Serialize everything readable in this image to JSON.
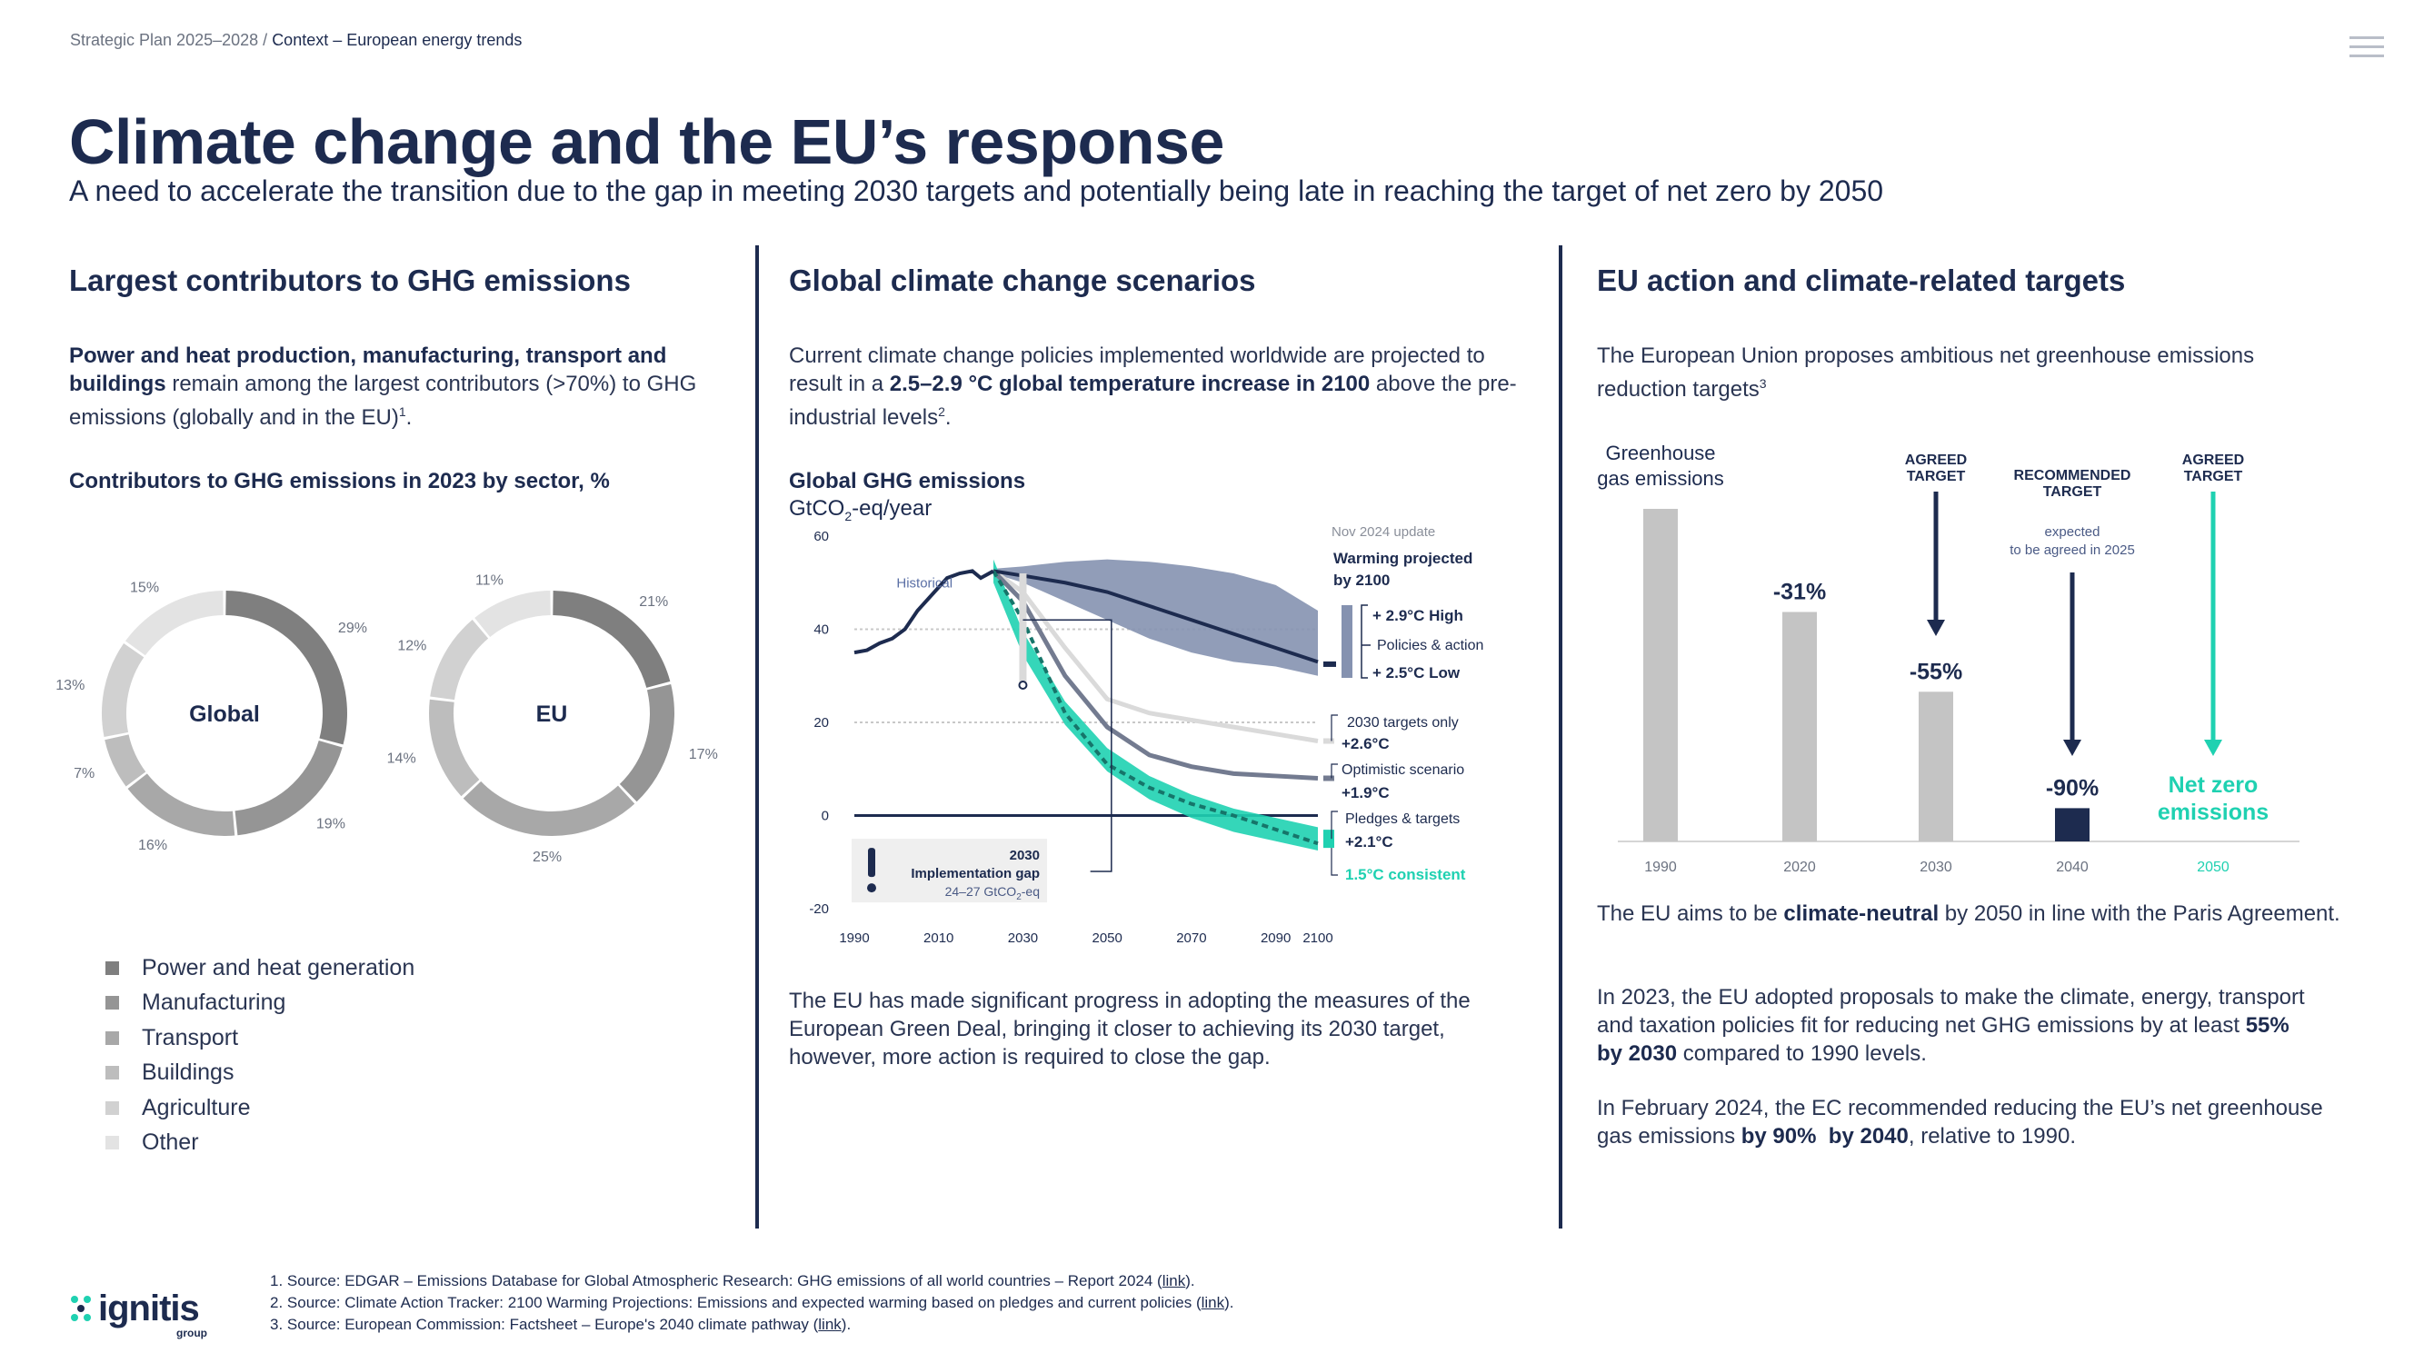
{
  "breadcrumb": {
    "root": "Strategic Plan 2025–2028 /",
    "current": "Context – European energy trends"
  },
  "title": "Climate change and the EU’s response",
  "subtitle": "A need to accelerate the transition due to the gap in meeting 2030 targets and potentially being late in reaching the target of net zero by 2050",
  "left": {
    "heading": "Largest contributors to GHG emissions",
    "p1_bold": "Power and heat production, manufacturing, transport and buildings",
    "p1_rest": " remain among the largest contributors (>70%) to GHG emissions (globally and in the EU)",
    "p1_sup": "1",
    "chart_title": "Contributors to GHG emissions in 2023 by sector, %",
    "legend": [
      {
        "label": "Power and heat generation",
        "color": "#7f7f7f"
      },
      {
        "label": "Manufacturing",
        "color": "#959595"
      },
      {
        "label": "Transport",
        "color": "#a8a8a8"
      },
      {
        "label": "Buildings",
        "color": "#bdbdbd"
      },
      {
        "label": "Agriculture",
        "color": "#d1d1d1"
      },
      {
        "label": "Other",
        "color": "#e3e3e3"
      }
    ]
  },
  "middle": {
    "heading": "Global climate change scenarios",
    "p1_a": "Current climate change policies implemented worldwide are projected to result in a ",
    "p1_bold": "2.5–2.9 °C global temperature increase in 2100",
    "p1_b": " above the pre-industrial levels",
    "p1_sup": "2",
    "chart_title": "Global GHG emissions",
    "chart_unit_pre": "GtCO",
    "chart_unit_sub": "2",
    "chart_unit_post": "-eq/year",
    "p2": "The EU has made significant progress in adopting the measures of the European Green Deal, bringing it closer to achieving its 2030 target, however, more action is required to close the gap."
  },
  "right": {
    "heading": "EU action and climate-related targets",
    "p1": "The European Union proposes ambitious net greenhouse emissions reduction targets",
    "p1_sup": "3",
    "p2_a": "The EU aims to be ",
    "p2_bold": "climate-neutral",
    "p2_b": " by 2050 in line with the Paris Agreement.",
    "p3_a": "In 2023, the EU adopted proposals to make the climate, energy, transport and taxation policies fit for reducing net GHG emissions by at least ",
    "p3_bold1": "55%",
    "p3_bold2": "by 2030",
    "p3_b": " compared to 1990 levels.",
    "p4_a": "In February 2024, the EC recommended reducing the EU’s net greenhouse gas emissions ",
    "p4_bold1": "by 90%",
    "p4_bold2": "by 2040",
    "p4_b": ", relative to 1990."
  },
  "footnotes": [
    {
      "num": "1.",
      "text": "Source: EDGAR – Emissions Database for Global Atmospheric Research: GHG emissions of all world countries – Report 2024 (",
      "link": "link",
      "end": ")."
    },
    {
      "num": "2.",
      "text": "Source: Climate Action Tracker: 2100 Warming Projections: Emissions and expected warming based on pledges and current policies (",
      "link": "link",
      "end": ")."
    },
    {
      "num": "3.",
      "text": "Source: European Commission: Factsheet – Europe's 2040 climate pathway (",
      "link": "link",
      "end": ")."
    }
  ],
  "logo": {
    "name": "ignitis",
    "sub": "group"
  },
  "colors": {
    "navy": "#1d2b4f",
    "teal": "#1fd1b1",
    "grey_bar": "#c4c4c4"
  },
  "chart_data": [
    {
      "type": "pie",
      "variant": "donut",
      "center_label": "Global",
      "categories": [
        "Power and heat generation",
        "Manufacturing",
        "Transport",
        "Buildings",
        "Agriculture",
        "Other"
      ],
      "values": [
        29,
        19,
        16,
        7,
        13,
        15
      ],
      "value_labels": [
        "29%",
        "19%",
        "16%",
        "7%",
        "13%",
        "15%"
      ]
    },
    {
      "type": "pie",
      "variant": "donut",
      "center_label": "EU",
      "categories": [
        "Power and heat generation",
        "Manufacturing",
        "Transport",
        "Buildings",
        "Agriculture",
        "Other"
      ],
      "values": [
        21,
        17,
        25,
        14,
        12,
        11
      ],
      "value_labels": [
        "21%",
        "17%",
        "25%",
        "14%",
        "12%",
        "11%"
      ]
    },
    {
      "type": "line",
      "title": "Global GHG emissions",
      "ylabel": "GtCO2-eq/year",
      "ylim": [
        -20,
        60
      ],
      "yticks": [
        -20,
        0,
        20,
        40,
        60
      ],
      "xlim": [
        1990,
        2100
      ],
      "xticks": [
        1990,
        2010,
        2030,
        2050,
        2070,
        2090,
        2100
      ],
      "update_note": "Nov 2024 update",
      "warming_header": "Warming projected by 2100",
      "historical_label": "Historical",
      "historical": {
        "x": [
          1990,
          1993,
          1996,
          1999,
          2002,
          2005,
          2008,
          2010,
          2012,
          2015,
          2018,
          2020,
          2023
        ],
        "y": [
          35,
          35.5,
          37,
          38,
          40,
          44,
          47,
          49,
          51,
          52,
          52.5,
          51,
          52.5
        ]
      },
      "policies_band": {
        "x": [
          2023,
          2030,
          2040,
          2050,
          2060,
          2070,
          2080,
          2090,
          2100
        ],
        "high": [
          53,
          53.5,
          54.5,
          55,
          54.5,
          53.5,
          52,
          49.5,
          44
        ],
        "low": [
          52,
          50,
          46,
          42,
          38,
          35,
          33,
          32,
          30
        ]
      },
      "series": [
        {
          "name": "Policies & action",
          "x": [
            2023,
            2030,
            2040,
            2050,
            2060,
            2070,
            2080,
            2090,
            2100
          ],
          "y": [
            52.5,
            51.5,
            50,
            48,
            45,
            42,
            39,
            36,
            33
          ]
        },
        {
          "name": "2030 targets only",
          "x": [
            2023,
            2030,
            2040,
            2050,
            2060,
            2070,
            2080,
            2090,
            2100
          ],
          "y": [
            52.5,
            48,
            36,
            25,
            22,
            20.5,
            19,
            17.5,
            16
          ]
        },
        {
          "name": "Optimistic scenario",
          "x": [
            2023,
            2030,
            2040,
            2050,
            2060,
            2070,
            2080,
            2090,
            2100
          ],
          "y": [
            52.5,
            46,
            30,
            19,
            13,
            10.5,
            9,
            8.5,
            8
          ]
        },
        {
          "name": "Pledges & targets",
          "x": [
            2023,
            2030,
            2040,
            2050,
            2060,
            2070,
            2080,
            2090,
            2100
          ],
          "y": [
            52.5,
            42,
            22,
            11,
            6,
            2.5,
            0,
            -3,
            -6
          ]
        },
        {
          "name": "1.5°C consistent",
          "x": [
            2023,
            2030,
            2040,
            2050,
            2060,
            2070,
            2080,
            2090,
            2100
          ],
          "y": [
            52.5,
            37,
            22,
            12,
            6,
            2,
            -1,
            -3,
            -5
          ]
        }
      ],
      "labels": {
        "high": "+ 2.9°C High",
        "policies": "Policies & action",
        "low": "+ 2.5°C Low",
        "targets_only": "2030 targets only",
        "targets_only_val": "+2.6°C",
        "optimistic": "Optimistic scenario",
        "optimistic_val": "+1.9°C",
        "pledges": "Pledges & targets",
        "pledges_val": "+2.1°C",
        "consistent": "1.5°C consistent"
      },
      "gap_box": {
        "year": "2030",
        "label": "Implementation gap",
        "range_pre": "24–27 GtCO",
        "range_sub": "2",
        "range_post": "-eq",
        "icon": "!"
      }
    },
    {
      "type": "bar",
      "series_label": "Greenhouse gas emissions",
      "categories": [
        "1990",
        "2020",
        "2030",
        "2040",
        "2050"
      ],
      "values": [
        100,
        69,
        45,
        10,
        0
      ],
      "value_labels": [
        "",
        "-31%",
        "-55%",
        "-90%",
        "Net zero emissions"
      ],
      "bar_colors": [
        "#c4c4c4",
        "#c4c4c4",
        "#c4c4c4",
        "#1d2b4f",
        "#1fd1b1"
      ],
      "annotations": [
        {
          "category": "2030",
          "label": "AGREED TARGET"
        },
        {
          "category": "2040",
          "label": "RECOMMENDED TARGET",
          "note": "expected to be agreed in 2025"
        },
        {
          "category": "2050",
          "label": "AGREED TARGET"
        }
      ]
    }
  ]
}
